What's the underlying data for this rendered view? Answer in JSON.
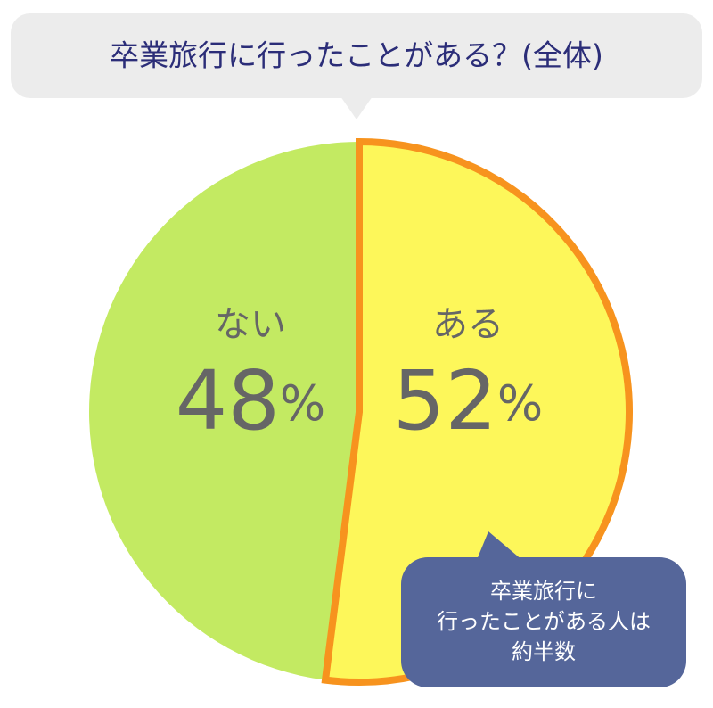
{
  "chart_data": {
    "type": "pie",
    "title": "卒業旅行に行ったことがある？(全体)",
    "categories": [
      "ある",
      "ない"
    ],
    "values": [
      52,
      48
    ],
    "value_labels": [
      "52%",
      "48%"
    ],
    "colors": [
      "#fdf75a",
      "#c3ea62"
    ],
    "highlight_index": 0,
    "highlight_color": "#f7931e",
    "annotation": [
      "卒業旅行に",
      "行ったことがある人は",
      "約半数"
    ]
  }
}
